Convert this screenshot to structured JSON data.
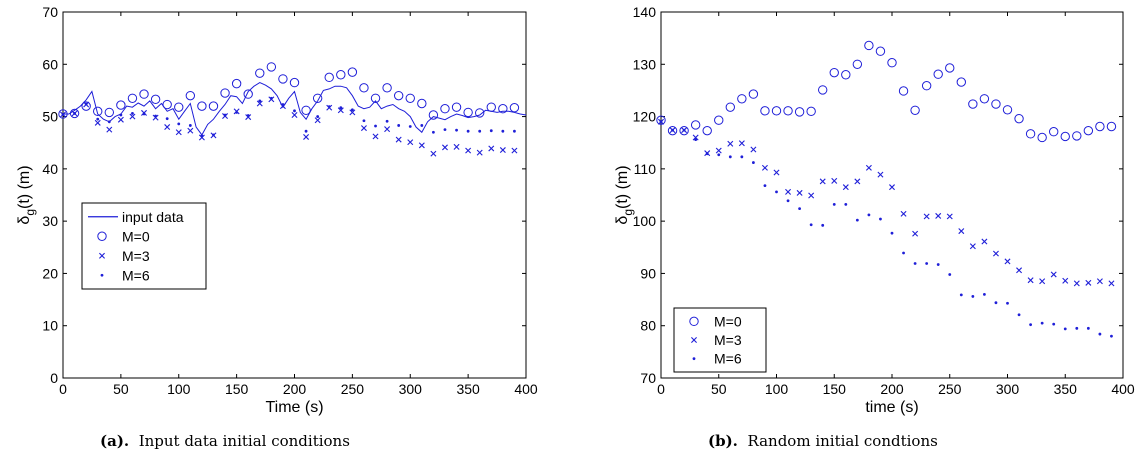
{
  "chart_data": [
    {
      "type": "scatter",
      "caption_label": "(a).",
      "caption_text": "Input data initial conditions",
      "xlabel": "Time (s)",
      "ylabel_main": "δ",
      "ylabel_sub": "g",
      "ylabel_tail": "(t) (m)",
      "xlim": [
        0,
        400
      ],
      "ylim": [
        0,
        70
      ],
      "xticks": [
        0,
        50,
        100,
        150,
        200,
        250,
        300,
        350,
        400
      ],
      "yticks": [
        0,
        10,
        20,
        30,
        40,
        50,
        60,
        70
      ],
      "grid": false,
      "legend_position": "lower-left",
      "color": "#1f1fd8",
      "line_series": {
        "name": "input data",
        "x": [
          0,
          5,
          10,
          15,
          20,
          25,
          30,
          35,
          40,
          45,
          50,
          55,
          60,
          65,
          70,
          75,
          80,
          85,
          90,
          95,
          100,
          105,
          110,
          115,
          120,
          125,
          130,
          135,
          140,
          145,
          150,
          155,
          160,
          165,
          170,
          175,
          180,
          185,
          190,
          195,
          200,
          205,
          210,
          215,
          220,
          225,
          230,
          235,
          240,
          245,
          250,
          255,
          260,
          265,
          270,
          275,
          280,
          285,
          290,
          295,
          300,
          305,
          310,
          315,
          320,
          325,
          330,
          335,
          340,
          345,
          350,
          355,
          360,
          365,
          370,
          375,
          380,
          385,
          390,
          395,
          400
        ],
        "y": [
          50.5,
          50.5,
          51.2,
          52,
          53.2,
          54.8,
          50.5,
          49.5,
          49,
          50,
          50.5,
          52,
          51.8,
          52.6,
          52,
          53,
          51.5,
          52.5,
          51,
          51.5,
          49.5,
          51,
          52.5,
          48,
          46.5,
          48.5,
          49.5,
          51,
          52.3,
          54,
          53.8,
          52.5,
          54.8,
          55.8,
          56.5,
          56,
          55.3,
          54,
          51.8,
          53.5,
          54.8,
          50.8,
          49.5,
          51.5,
          53,
          55,
          55.3,
          55.8,
          55.8,
          55.5,
          54,
          52,
          51.5,
          51.8,
          53,
          51.5,
          52,
          52.3,
          51.5,
          51,
          50,
          48,
          47,
          49,
          50,
          49.7,
          49.4,
          50,
          50.5,
          50.2,
          49.8,
          50,
          50.3,
          51.2,
          51,
          50.8,
          51,
          51,
          50.8,
          50.5,
          50.3
        ]
      },
      "series": [
        {
          "name": "M=0",
          "marker": "circle",
          "x": [
            0,
            10,
            20,
            30,
            40,
            50,
            60,
            70,
            80,
            90,
            100,
            110,
            120,
            130,
            140,
            150,
            160,
            170,
            180,
            190,
            200,
            210,
            220,
            230,
            240,
            250,
            260,
            270,
            280,
            290,
            300,
            310,
            320,
            330,
            340,
            350,
            360,
            370,
            380,
            390
          ],
          "y": [
            50.5,
            50.6,
            52,
            51,
            50.8,
            52.2,
            53.5,
            54.3,
            53.3,
            52.3,
            51.8,
            54,
            52,
            52,
            54.5,
            56.3,
            54.3,
            58.3,
            59.5,
            57.2,
            56.5,
            51.2,
            53.5,
            57.5,
            58,
            58.5,
            55.5,
            53.5,
            55.5,
            54,
            53.5,
            52.5,
            50.3,
            51.5,
            51.8,
            50.8,
            50.7,
            51.8,
            51.5,
            51.7
          ]
        },
        {
          "name": "M=3",
          "marker": "x",
          "x": [
            0,
            10,
            20,
            30,
            40,
            50,
            60,
            70,
            80,
            90,
            100,
            110,
            120,
            130,
            140,
            150,
            160,
            170,
            180,
            190,
            200,
            210,
            220,
            230,
            240,
            250,
            260,
            270,
            280,
            290,
            300,
            310,
            320,
            330,
            340,
            350,
            360,
            370,
            380,
            390
          ],
          "y": [
            50.4,
            50.6,
            52.3,
            48.8,
            47.5,
            49.4,
            50,
            50.7,
            49.8,
            48,
            47,
            47.3,
            46,
            46.4,
            50.1,
            51,
            49.9,
            52.5,
            53.3,
            52,
            50.3,
            46.1,
            49.3,
            51.7,
            51.2,
            50.8,
            47.8,
            46.2,
            47.6,
            45.6,
            45.1,
            44.5,
            42.9,
            44.1,
            44.2,
            43.5,
            43.1,
            43.9,
            43.6,
            43.5
          ]
        },
        {
          "name": "M=6",
          "marker": "dot",
          "x": [
            0,
            10,
            20,
            30,
            40,
            50,
            60,
            70,
            80,
            90,
            100,
            110,
            120,
            130,
            140,
            150,
            160,
            170,
            180,
            190,
            200,
            210,
            220,
            230,
            240,
            250,
            260,
            270,
            280,
            290,
            300,
            310,
            320,
            330,
            340,
            350,
            360,
            370,
            380,
            390
          ],
          "y": [
            50.4,
            50.6,
            52.4,
            49.5,
            49,
            50.3,
            50.6,
            50.5,
            50.1,
            49.6,
            48.6,
            48.3,
            46.3,
            46.5,
            50.3,
            50.8,
            50.2,
            53,
            53.5,
            52.3,
            51.1,
            47.2,
            50,
            51.9,
            51.7,
            51.3,
            49.2,
            48.2,
            49.1,
            48.3,
            48.1,
            48.3,
            47,
            47.5,
            47.4,
            47.2,
            47.2,
            47.3,
            47.2,
            47.2
          ]
        }
      ]
    },
    {
      "type": "scatter",
      "caption_label": "(b).",
      "caption_text": "Random initial condtions",
      "xlabel": "time (s)",
      "ylabel_main": "δ",
      "ylabel_sub": "g",
      "ylabel_tail": "(t) (m)",
      "xlim": [
        0,
        400
      ],
      "ylim": [
        70,
        140
      ],
      "xticks": [
        0,
        50,
        100,
        150,
        200,
        250,
        300,
        350,
        400
      ],
      "yticks": [
        70,
        80,
        90,
        100,
        110,
        120,
        130,
        140
      ],
      "grid": false,
      "legend_position": "lower-left",
      "color": "#1f1fd8",
      "series": [
        {
          "name": "M=0",
          "marker": "circle",
          "x": [
            0,
            10,
            20,
            30,
            40,
            50,
            60,
            70,
            80,
            90,
            100,
            110,
            120,
            130,
            140,
            150,
            160,
            170,
            180,
            190,
            200,
            210,
            220,
            230,
            240,
            250,
            260,
            270,
            280,
            290,
            300,
            310,
            320,
            330,
            340,
            350,
            360,
            370,
            380,
            390
          ],
          "y": [
            119.3,
            117.3,
            117.3,
            118.4,
            117.3,
            119.3,
            121.8,
            123.4,
            124.3,
            121.1,
            121.1,
            121.1,
            120.9,
            121,
            125.1,
            128.4,
            128,
            130,
            133.6,
            132.5,
            130.3,
            124.9,
            121.2,
            125.9,
            128.1,
            129.3,
            126.6,
            122.4,
            123.4,
            122.4,
            121.3,
            119.6,
            116.7,
            116,
            117.1,
            116.2,
            116.3,
            117.3,
            118.1,
            118.1
          ]
        },
        {
          "name": "M=3",
          "marker": "x",
          "x": [
            0,
            10,
            20,
            30,
            40,
            50,
            60,
            70,
            80,
            90,
            100,
            110,
            120,
            130,
            140,
            150,
            160,
            170,
            180,
            190,
            200,
            210,
            220,
            230,
            240,
            250,
            260,
            270,
            280,
            290,
            300,
            310,
            320,
            330,
            340,
            350,
            360,
            370,
            380,
            390
          ],
          "y": [
            119,
            117.4,
            117.4,
            116,
            113,
            113.5,
            114.8,
            114.9,
            113.7,
            110.2,
            109.3,
            105.6,
            105.4,
            104.9,
            107.6,
            107.7,
            106.5,
            107.6,
            110.2,
            108.9,
            106.5,
            101.4,
            97.6,
            100.9,
            101,
            100.9,
            98.1,
            95.2,
            96.1,
            93.8,
            92.3,
            90.6,
            88.7,
            88.5,
            89.8,
            88.6,
            88.1,
            88.2,
            88.5,
            88.1
          ]
        },
        {
          "name": "M=6",
          "marker": "dot",
          "x": [
            0,
            10,
            20,
            30,
            40,
            50,
            60,
            70,
            80,
            90,
            100,
            110,
            120,
            130,
            140,
            150,
            160,
            170,
            180,
            190,
            200,
            210,
            220,
            230,
            240,
            250,
            260,
            270,
            280,
            290,
            300,
            310,
            320,
            330,
            340,
            350,
            360,
            370,
            380,
            390
          ],
          "y": [
            119,
            117.4,
            117.4,
            115.6,
            112.9,
            112.7,
            112.3,
            112.3,
            111.2,
            106.8,
            105.6,
            103.9,
            102.4,
            99.3,
            99.2,
            103.2,
            103.2,
            100.2,
            101.2,
            100.4,
            97.7,
            93.9,
            91.9,
            91.9,
            91.7,
            89.8,
            85.9,
            85.6,
            86,
            84.4,
            84.3,
            82.1,
            80.2,
            80.5,
            80.3,
            79.4,
            79.5,
            79.5,
            78.4,
            78
          ]
        }
      ]
    }
  ]
}
